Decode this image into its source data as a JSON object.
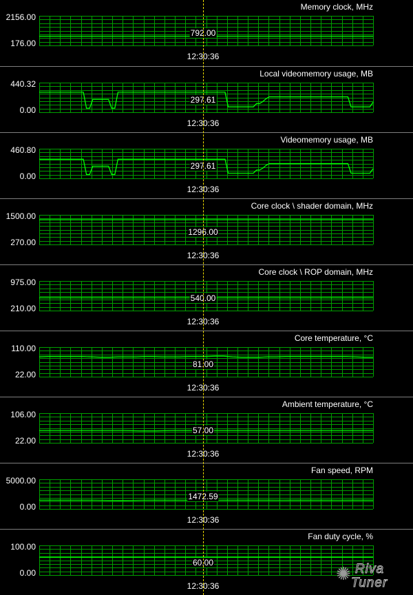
{
  "monitor": {
    "cursor_time": "12:30:36",
    "cursor_position": 0.49,
    "logo": {
      "line1": "Riva",
      "line2": "Tuner",
      "icon": "gear-star-icon"
    },
    "colors": {
      "background": "#000000",
      "grid": "#00a000",
      "line": "#00ff00",
      "cursor": "#f4e000",
      "separator": "#7f7f7f",
      "text": "#ffffff"
    }
  },
  "chart_data": [
    {
      "type": "line",
      "id": "memory-clock",
      "title": "Memory clock, MHz",
      "ylim": [
        176,
        2156
      ],
      "ymax_label": "2156.00",
      "ymin_label": "176.00",
      "current_label": "792.00",
      "values": [
        792,
        792,
        792,
        792,
        792,
        792,
        792,
        792,
        792,
        792,
        792
      ]
    },
    {
      "type": "line",
      "id": "local-videomemory-usage",
      "title": "Local videomemory usage, MB",
      "ylim": [
        0,
        440.32
      ],
      "ymax_label": "440.32",
      "ymin_label": "0.00",
      "current_label": "297.61",
      "values": [
        297.61,
        297.61,
        297.61,
        297.61,
        297.61,
        297.61,
        297.61,
        297.61,
        297.61,
        297.61,
        297.61,
        297.61,
        297.61,
        297.61,
        297.61,
        60,
        60,
        190,
        190,
        190,
        190,
        190,
        190,
        60,
        60,
        297.61,
        297.61,
        297.61,
        297.61,
        297.61,
        297.61,
        297.61,
        297.61,
        297.61,
        297.61,
        297.61,
        297.61,
        297.61,
        297.61,
        297.61,
        297.61,
        297.61,
        297.61,
        297.61,
        297.61,
        297.61,
        297.61,
        297.61,
        297.61,
        297.61,
        297.61,
        297.61,
        297.61,
        297.61,
        297.61,
        297.61,
        297.61,
        297.61,
        297.61,
        297.61,
        80,
        80,
        80,
        80,
        80,
        80,
        80,
        80,
        80,
        130,
        130,
        160,
        200,
        230,
        230,
        230,
        230,
        230,
        230,
        230,
        230,
        230,
        230,
        230,
        230,
        230,
        230,
        230,
        230,
        230,
        230,
        230,
        230,
        230,
        230,
        230,
        230,
        230,
        230,
        80,
        80,
        80,
        80,
        80,
        80,
        80,
        150
      ]
    },
    {
      "type": "line",
      "id": "videomemory-usage",
      "title": "Videomemory usage, MB",
      "ylim": [
        0,
        460.8
      ],
      "ymax_label": "460.80",
      "ymin_label": "0.00",
      "current_label": "297.61",
      "values": [
        297.61,
        297.61,
        297.61,
        297.61,
        297.61,
        297.61,
        297.61,
        297.61,
        297.61,
        297.61,
        297.61,
        297.61,
        297.61,
        297.61,
        297.61,
        60,
        60,
        190,
        190,
        190,
        190,
        190,
        190,
        60,
        60,
        297.61,
        297.61,
        297.61,
        297.61,
        297.61,
        297.61,
        297.61,
        297.61,
        297.61,
        297.61,
        297.61,
        297.61,
        297.61,
        297.61,
        297.61,
        297.61,
        297.61,
        297.61,
        297.61,
        297.61,
        297.61,
        297.61,
        297.61,
        297.61,
        297.61,
        297.61,
        297.61,
        297.61,
        297.61,
        297.61,
        297.61,
        297.61,
        297.61,
        297.61,
        297.61,
        80,
        80,
        80,
        80,
        80,
        80,
        80,
        80,
        80,
        130,
        130,
        160,
        200,
        230,
        230,
        230,
        230,
        230,
        230,
        230,
        230,
        230,
        230,
        230,
        230,
        230,
        230,
        230,
        230,
        230,
        230,
        230,
        230,
        230,
        230,
        230,
        230,
        230,
        230,
        80,
        80,
        80,
        80,
        80,
        80,
        80,
        150
      ]
    },
    {
      "type": "line",
      "id": "core-clock-shader",
      "title": "Core clock \\ shader domain, MHz",
      "ylim": [
        270,
        1500
      ],
      "ymax_label": "1500.00",
      "ymin_label": "270.00",
      "current_label": "1296.00",
      "values": [
        1296,
        1296,
        1296,
        1296,
        1296,
        1296,
        1296,
        1296,
        1296,
        1296,
        1296
      ]
    },
    {
      "type": "line",
      "id": "core-clock-rop",
      "title": "Core clock \\ ROP domain, MHz",
      "ylim": [
        210,
        975
      ],
      "ymax_label": "975.00",
      "ymin_label": "210.00",
      "current_label": "540.00",
      "values": [
        540,
        540,
        540,
        540,
        540,
        540,
        540,
        540,
        540,
        540,
        540
      ]
    },
    {
      "type": "line",
      "id": "core-temperature",
      "title": "Core temperature, °C",
      "ylim": [
        22,
        110
      ],
      "ymax_label": "110.00",
      "ymin_label": "22.00",
      "current_label": "81.00",
      "values": [
        81,
        82,
        82,
        82,
        82,
        82,
        81,
        80,
        80,
        81,
        81,
        81,
        82,
        82,
        81,
        81,
        81,
        82,
        82,
        82,
        83,
        83,
        81,
        80,
        80,
        80,
        81,
        81,
        82,
        82,
        82,
        82,
        82,
        82,
        82,
        82,
        81,
        80,
        80
      ]
    },
    {
      "type": "line",
      "id": "ambient-temperature",
      "title": "Ambient temperature, °C",
      "ylim": [
        22,
        106
      ],
      "ymax_label": "106.00",
      "ymin_label": "22.00",
      "current_label": "57.00",
      "values": [
        57,
        57,
        57,
        57,
        57,
        57,
        56,
        56,
        57,
        57,
        57,
        57,
        57,
        57,
        57,
        57,
        57,
        57,
        57,
        57,
        57
      ]
    },
    {
      "type": "line",
      "id": "fan-speed",
      "title": "Fan speed, RPM",
      "ylim": [
        0,
        5000
      ],
      "ymax_label": "5000.00",
      "ymin_label": "0.00",
      "current_label": "1472.59",
      "values": [
        1480,
        1480,
        1480,
        1480,
        1480,
        1470,
        1440,
        1430,
        1440,
        1470,
        1480,
        1480,
        1480,
        1470,
        1460,
        1470,
        1480,
        1480,
        1480,
        1480,
        1480,
        1470,
        1480,
        1480,
        1480,
        1480,
        1470,
        1480,
        1480,
        1480
      ]
    },
    {
      "type": "line",
      "id": "fan-duty-cycle",
      "title": "Fan duty cycle, %",
      "ylim": [
        0,
        100
      ],
      "ymax_label": "100.00",
      "ymin_label": "0.00",
      "current_label": "60.00",
      "values": [
        60,
        60,
        60,
        60,
        60,
        60,
        60,
        60,
        60,
        60,
        60
      ]
    }
  ]
}
